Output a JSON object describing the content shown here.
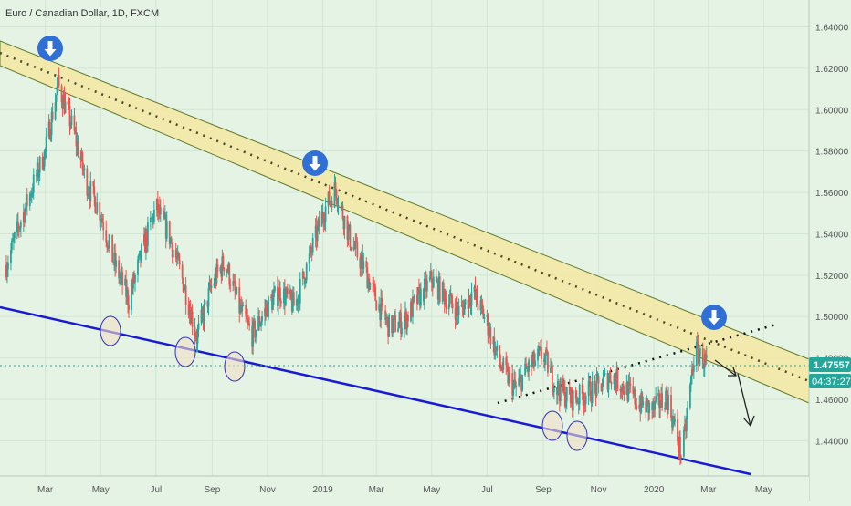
{
  "header": {
    "symbol": "Euro / Canadian Dollar, 1D, FXCM"
  },
  "colors": {
    "background": "#e4f3e4",
    "up": "#26a69a",
    "down": "#ef5350",
    "channel_fill": "#f5e6a3",
    "support_line": "#1a1ad6",
    "marker": "#2f6fd6",
    "price_badge": "#26a69a"
  },
  "price_axis": {
    "ticks": [
      "1.64000",
      "1.62000",
      "1.60000",
      "1.58000",
      "1.56000",
      "1.54000",
      "1.52000",
      "1.50000",
      "1.48000",
      "1.46000",
      "1.44000"
    ]
  },
  "time_axis": {
    "ticks": [
      "Mar",
      "May",
      "Jul",
      "Sep",
      "Nov",
      "2019",
      "Mar",
      "May",
      "Jul",
      "Sep",
      "Nov",
      "2020",
      "Mar",
      "May"
    ]
  },
  "last_price": {
    "value": "1.47557",
    "countdown": "04:37:27"
  },
  "markers": {
    "arrow_icon": "arrow-down-icon",
    "count": 3
  },
  "chart_data": {
    "type": "candlestick",
    "title": "Euro / Canadian Dollar, 1D, FXCM",
    "ylim": [
      1.423,
      1.653
    ],
    "y_ticks": [
      1.44,
      1.46,
      1.48,
      1.5,
      1.52,
      1.54,
      1.56,
      1.58,
      1.6,
      1.62,
      1.64
    ],
    "x_ticks": [
      "Mar",
      "May",
      "Jul",
      "Sep",
      "Nov",
      "2019",
      "Mar",
      "May",
      "Jul",
      "Sep",
      "Nov",
      "2020",
      "Mar",
      "May"
    ],
    "series": [
      {
        "x": [
          "2018-01-17",
          "2018-02-01",
          "2018-02-15",
          "2018-03-01",
          "2018-03-15",
          "2018-04-01",
          "2018-04-15",
          "2018-05-01",
          "2018-05-15",
          "2018-06-01",
          "2018-06-15",
          "2018-07-01",
          "2018-07-15",
          "2018-08-01",
          "2018-08-15",
          "2018-09-01",
          "2018-09-15",
          "2018-10-01",
          "2018-10-15",
          "2018-11-01",
          "2018-11-15",
          "2018-12-01",
          "2018-12-15",
          "2019-01-01",
          "2019-01-15",
          "2019-02-01",
          "2019-02-15",
          "2019-03-01",
          "2019-03-15",
          "2019-04-01",
          "2019-04-15",
          "2019-05-01",
          "2019-05-15",
          "2019-06-01",
          "2019-06-15",
          "2019-07-01",
          "2019-07-15",
          "2019-08-01",
          "2019-08-15",
          "2019-09-01",
          "2019-09-15",
          "2019-10-01",
          "2019-10-15",
          "2019-11-01",
          "2019-11-15",
          "2019-12-01",
          "2019-12-15",
          "2020-01-01",
          "2020-01-15",
          "2020-02-01",
          "2020-02-15",
          "2020-03-01"
        ],
        "y": [
          1.525,
          1.545,
          1.563,
          1.58,
          1.612,
          1.59,
          1.565,
          1.55,
          1.527,
          1.508,
          1.53,
          1.553,
          1.54,
          1.515,
          1.49,
          1.516,
          1.527,
          1.504,
          1.491,
          1.505,
          1.512,
          1.505,
          1.525,
          1.55,
          1.562,
          1.536,
          1.524,
          1.508,
          1.495,
          1.498,
          1.508,
          1.518,
          1.51,
          1.502,
          1.512,
          1.497,
          1.477,
          1.465,
          1.475,
          1.482,
          1.466,
          1.46,
          1.462,
          1.466,
          1.472,
          1.465,
          1.458,
          1.455,
          1.462,
          1.432,
          1.484,
          1.476
        ]
      }
    ],
    "annotations": {
      "channel": "descending resistance channel from Feb 2018 high through Dec 2018 high",
      "support": "descending support line",
      "dotted_trendline": "rising dotted line from Jul 2019 to Mar 2020"
    }
  }
}
